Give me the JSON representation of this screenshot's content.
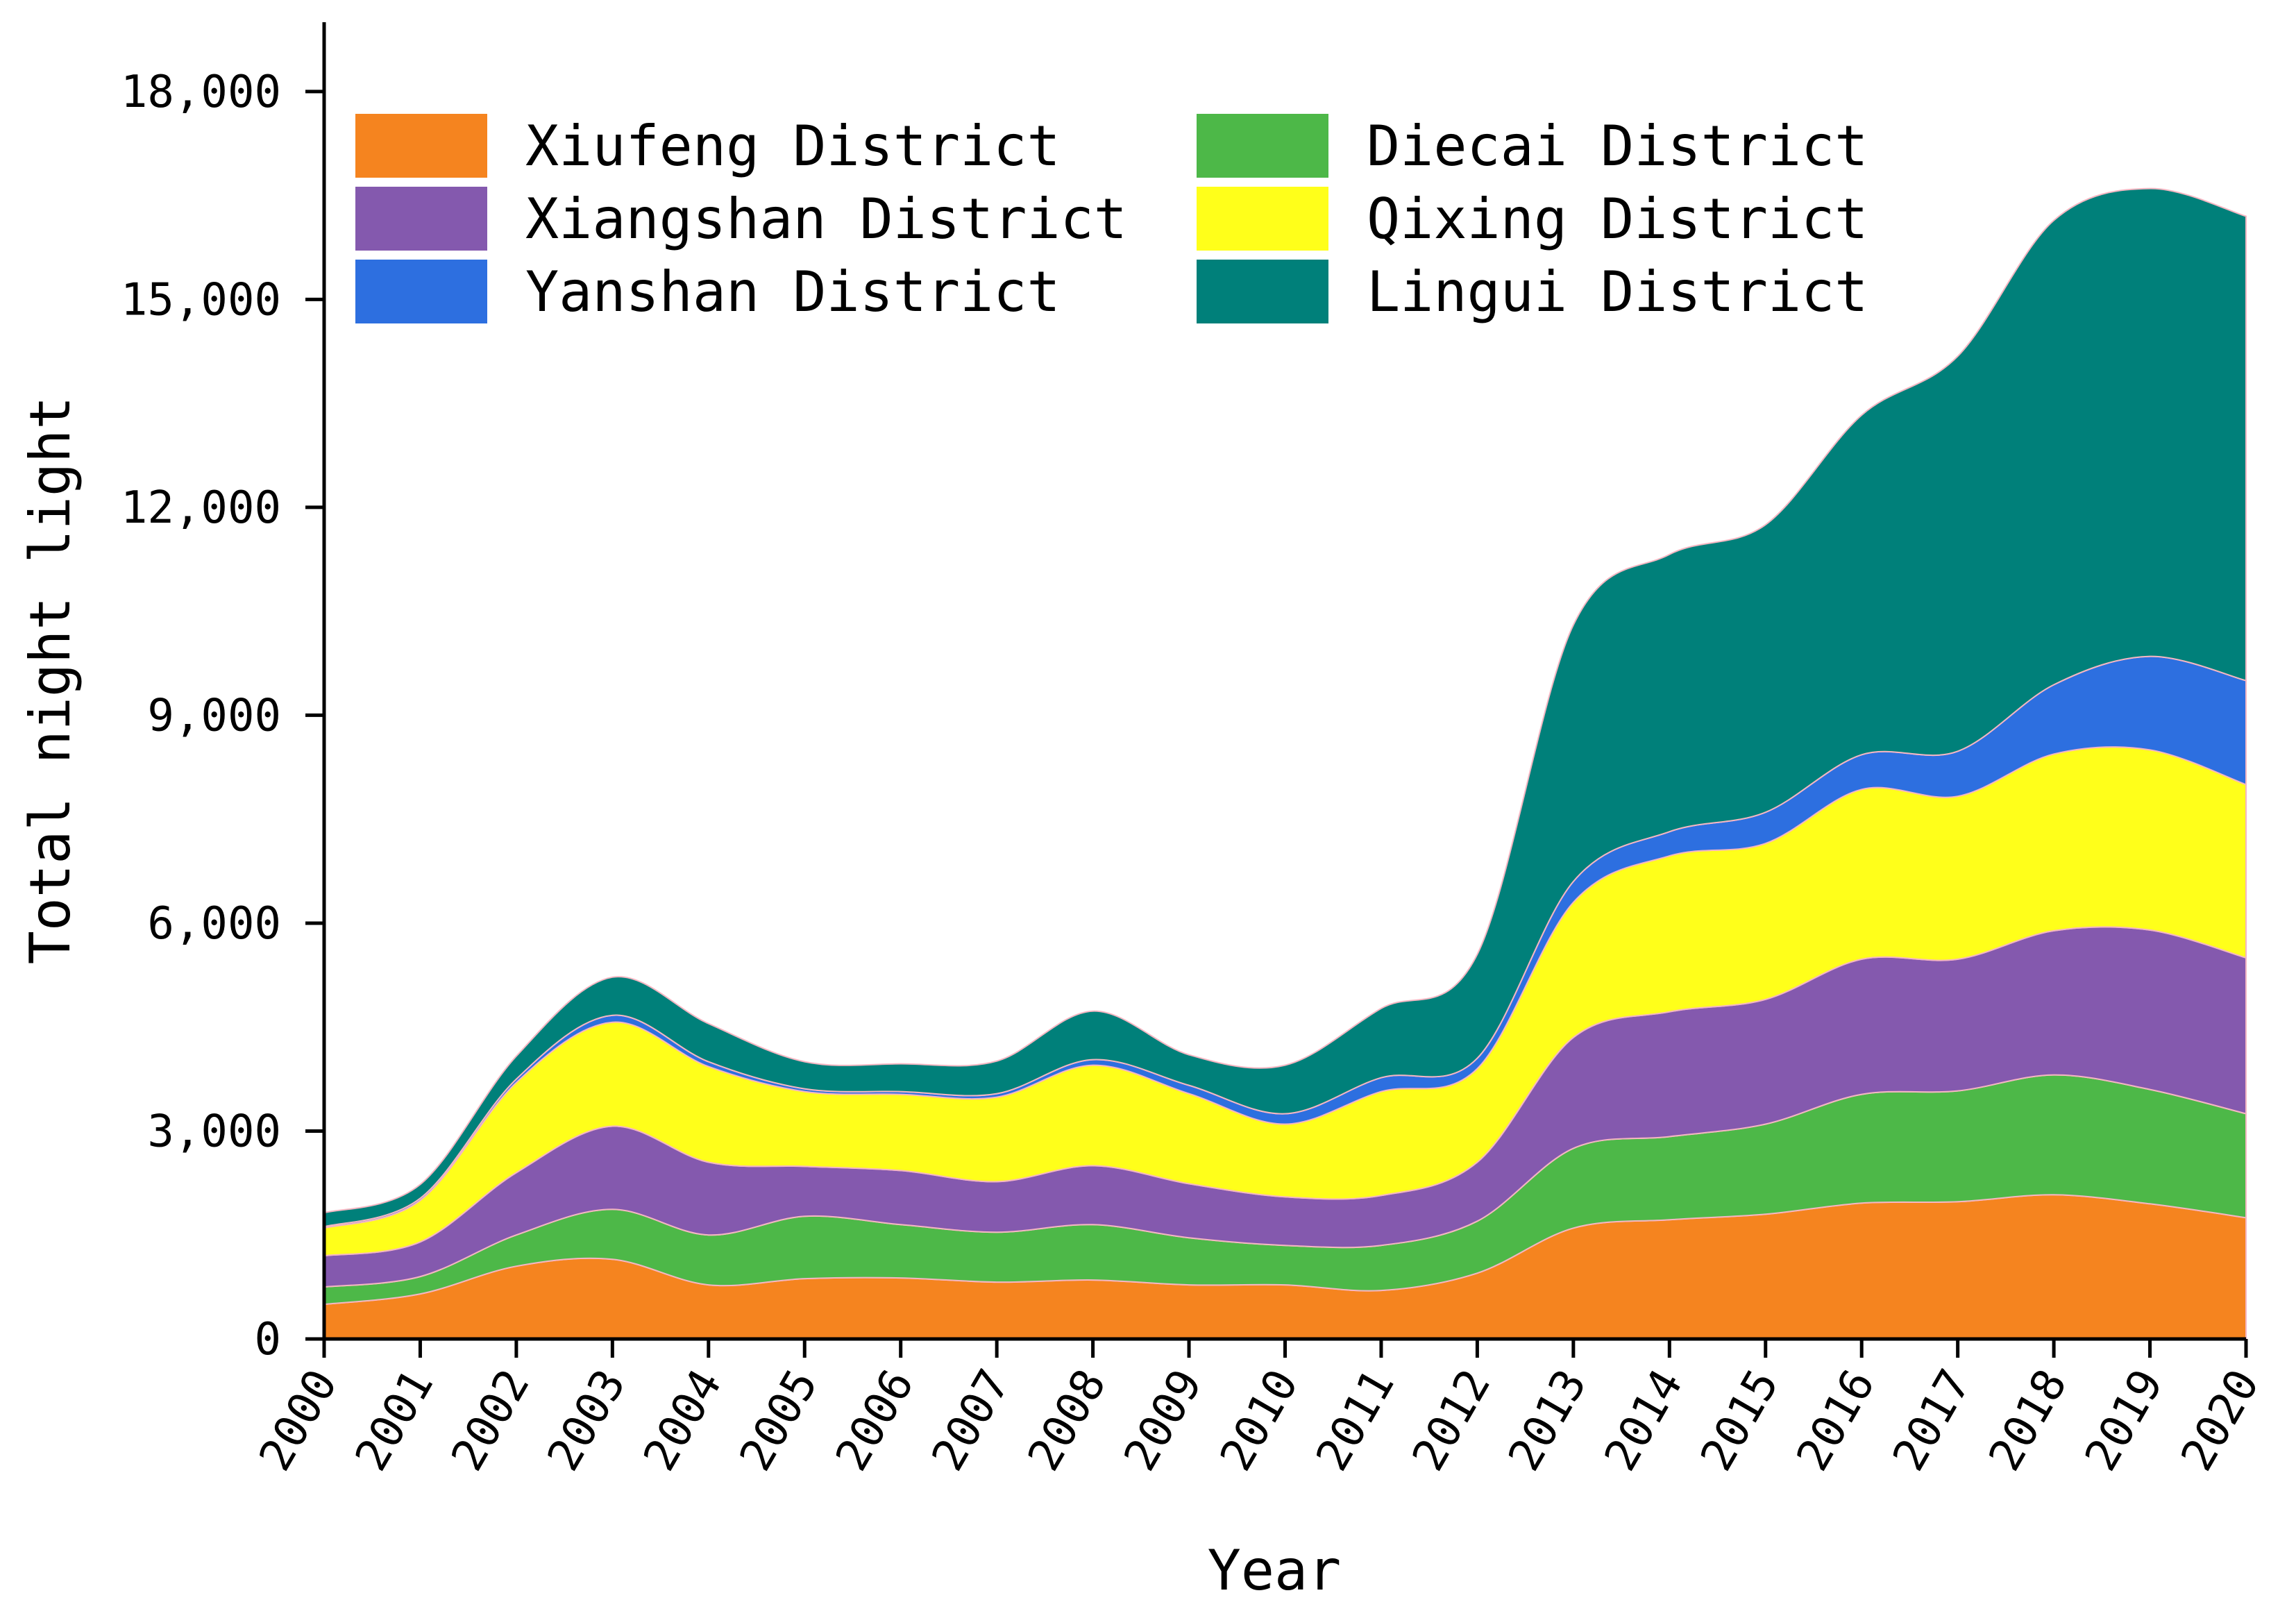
{
  "chart_data": {
    "type": "area",
    "stacked": true,
    "title": "",
    "xlabel": "Year",
    "ylabel": "Total night light",
    "ylim": [
      0,
      19000
    ],
    "yticks": [
      0,
      3000,
      6000,
      9000,
      12000,
      15000,
      18000
    ],
    "ytick_labels": [
      "0",
      "3,000",
      "6,000",
      "9,000",
      "12,000",
      "15,000",
      "18,000"
    ],
    "categories": [
      "2000",
      "2001",
      "2002",
      "2003",
      "2004",
      "2005",
      "2006",
      "2007",
      "2008",
      "2009",
      "2010",
      "2011",
      "2012",
      "2013",
      "2014",
      "2015",
      "2016",
      "2017",
      "2018",
      "2019",
      "2020"
    ],
    "grid": false,
    "legend_position": "top-left",
    "series": [
      {
        "name": "Xiufeng District",
        "color": "#F5841F",
        "values": [
          500,
          650,
          1050,
          1150,
          780,
          870,
          880,
          820,
          850,
          780,
          780,
          700,
          950,
          1600,
          1720,
          1800,
          1960,
          1980,
          2080,
          1950,
          1750
        ]
      },
      {
        "name": "Diecai District",
        "color": "#4DB848",
        "values": [
          250,
          250,
          450,
          720,
          720,
          900,
          770,
          720,
          800,
          680,
          570,
          650,
          750,
          1150,
          1200,
          1300,
          1570,
          1600,
          1730,
          1650,
          1500
        ]
      },
      {
        "name": "Xiangshan District",
        "color": "#8459AE",
        "values": [
          450,
          500,
          900,
          1200,
          1050,
          720,
          780,
          730,
          850,
          780,
          700,
          720,
          850,
          1600,
          1800,
          1800,
          1950,
          1900,
          2080,
          2300,
          2250
        ]
      },
      {
        "name": "Qixing District",
        "color": "#FFFF1A",
        "values": [
          400,
          600,
          1300,
          1500,
          1380,
          1080,
          1100,
          1220,
          1450,
          1300,
          1050,
          1500,
          1350,
          1950,
          2250,
          2250,
          2450,
          2350,
          2550,
          2600,
          2500
        ]
      },
      {
        "name": "Yanshan District",
        "color": "#2D6FE0",
        "values": [
          20,
          30,
          50,
          100,
          70,
          40,
          40,
          50,
          80,
          120,
          150,
          200,
          150,
          300,
          350,
          450,
          500,
          650,
          1000,
          1350,
          1500
        ]
      },
      {
        "name": "Lingui District",
        "color": "#00807A",
        "values": [
          200,
          200,
          330,
          550,
          550,
          390,
          400,
          470,
          700,
          440,
          700,
          1000,
          1500,
          3700,
          4000,
          4150,
          4900,
          5700,
          6700,
          6750,
          6700
        ]
      }
    ]
  }
}
